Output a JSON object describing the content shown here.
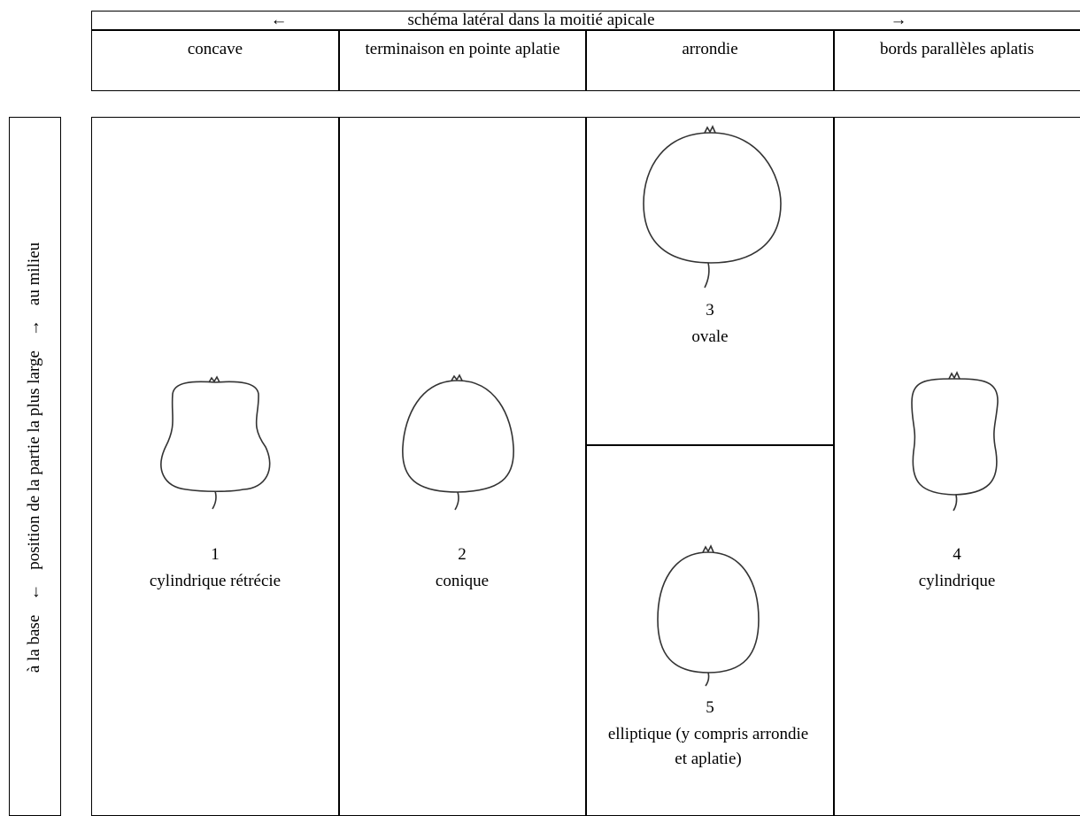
{
  "header": {
    "arrow_left": "←",
    "title": "schéma latéral dans la moitié apicale",
    "arrow_right": "→"
  },
  "columns": [
    "concave",
    "terminaison en pointe aplatie",
    "arrondie",
    "bords parallèles aplatis"
  ],
  "side_label": {
    "base": "à la base",
    "arrow_down": "←",
    "text": "position de la partie la plus large",
    "arrow_up": "→",
    "middle": "au milieu"
  },
  "shapes": [
    {
      "number": "1",
      "name": "cylindrique rétrécie"
    },
    {
      "number": "2",
      "name": "conique"
    },
    {
      "number": "3",
      "name": "ovale"
    },
    {
      "number": "4",
      "name": "cylindrique"
    },
    {
      "number": "5",
      "name": "elliptique (y compris arrondie et aplatie)"
    }
  ]
}
